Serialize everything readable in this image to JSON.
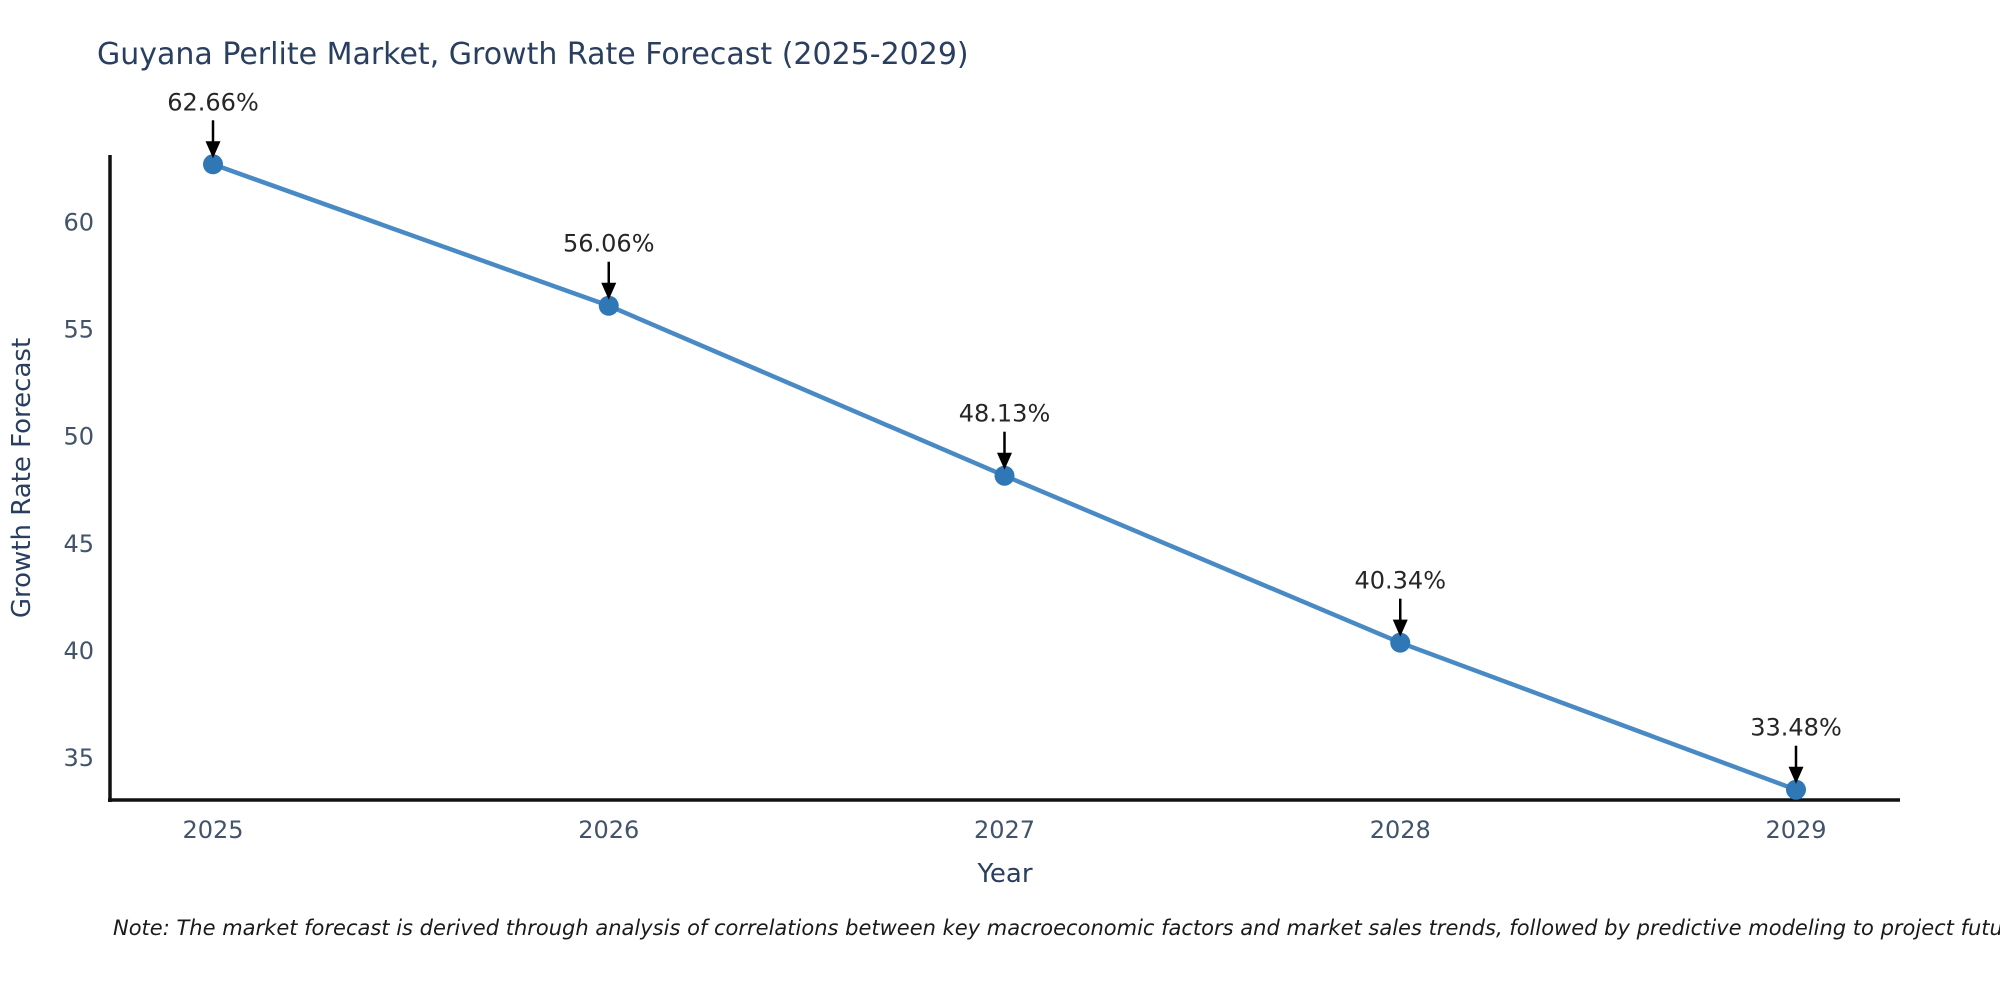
{
  "chart_data": {
    "type": "line",
    "title": "Guyana Perlite Market, Growth Rate Forecast (2025-2029)",
    "xlabel": "Year",
    "ylabel": "Growth Rate Forecast",
    "x": [
      2025,
      2026,
      2027,
      2028,
      2029
    ],
    "series": [
      {
        "name": "Growth Rate Forecast",
        "values": [
          62.66,
          56.06,
          48.13,
          40.34,
          33.48
        ]
      }
    ],
    "point_labels": [
      "62.66%",
      "56.06%",
      "48.13%",
      "40.34%",
      "33.48%"
    ],
    "yticks": [
      35,
      40,
      45,
      50,
      55,
      60
    ],
    "ylim": [
      33,
      63
    ],
    "grid": false,
    "legend_position": "none",
    "colors": {
      "line": "#4a8ac4",
      "marker": "#2f77b5",
      "axis": "#111111",
      "title": "#2a3f5f",
      "axis_label": "#2a3f5f",
      "tick": "#42536a",
      "annotation": "#262626",
      "arrow": "#000000"
    }
  },
  "note": "Note: The market forecast is derived through analysis of correlations between key macroeconomic factors and market sales trends, followed by predictive modeling to project future sales"
}
